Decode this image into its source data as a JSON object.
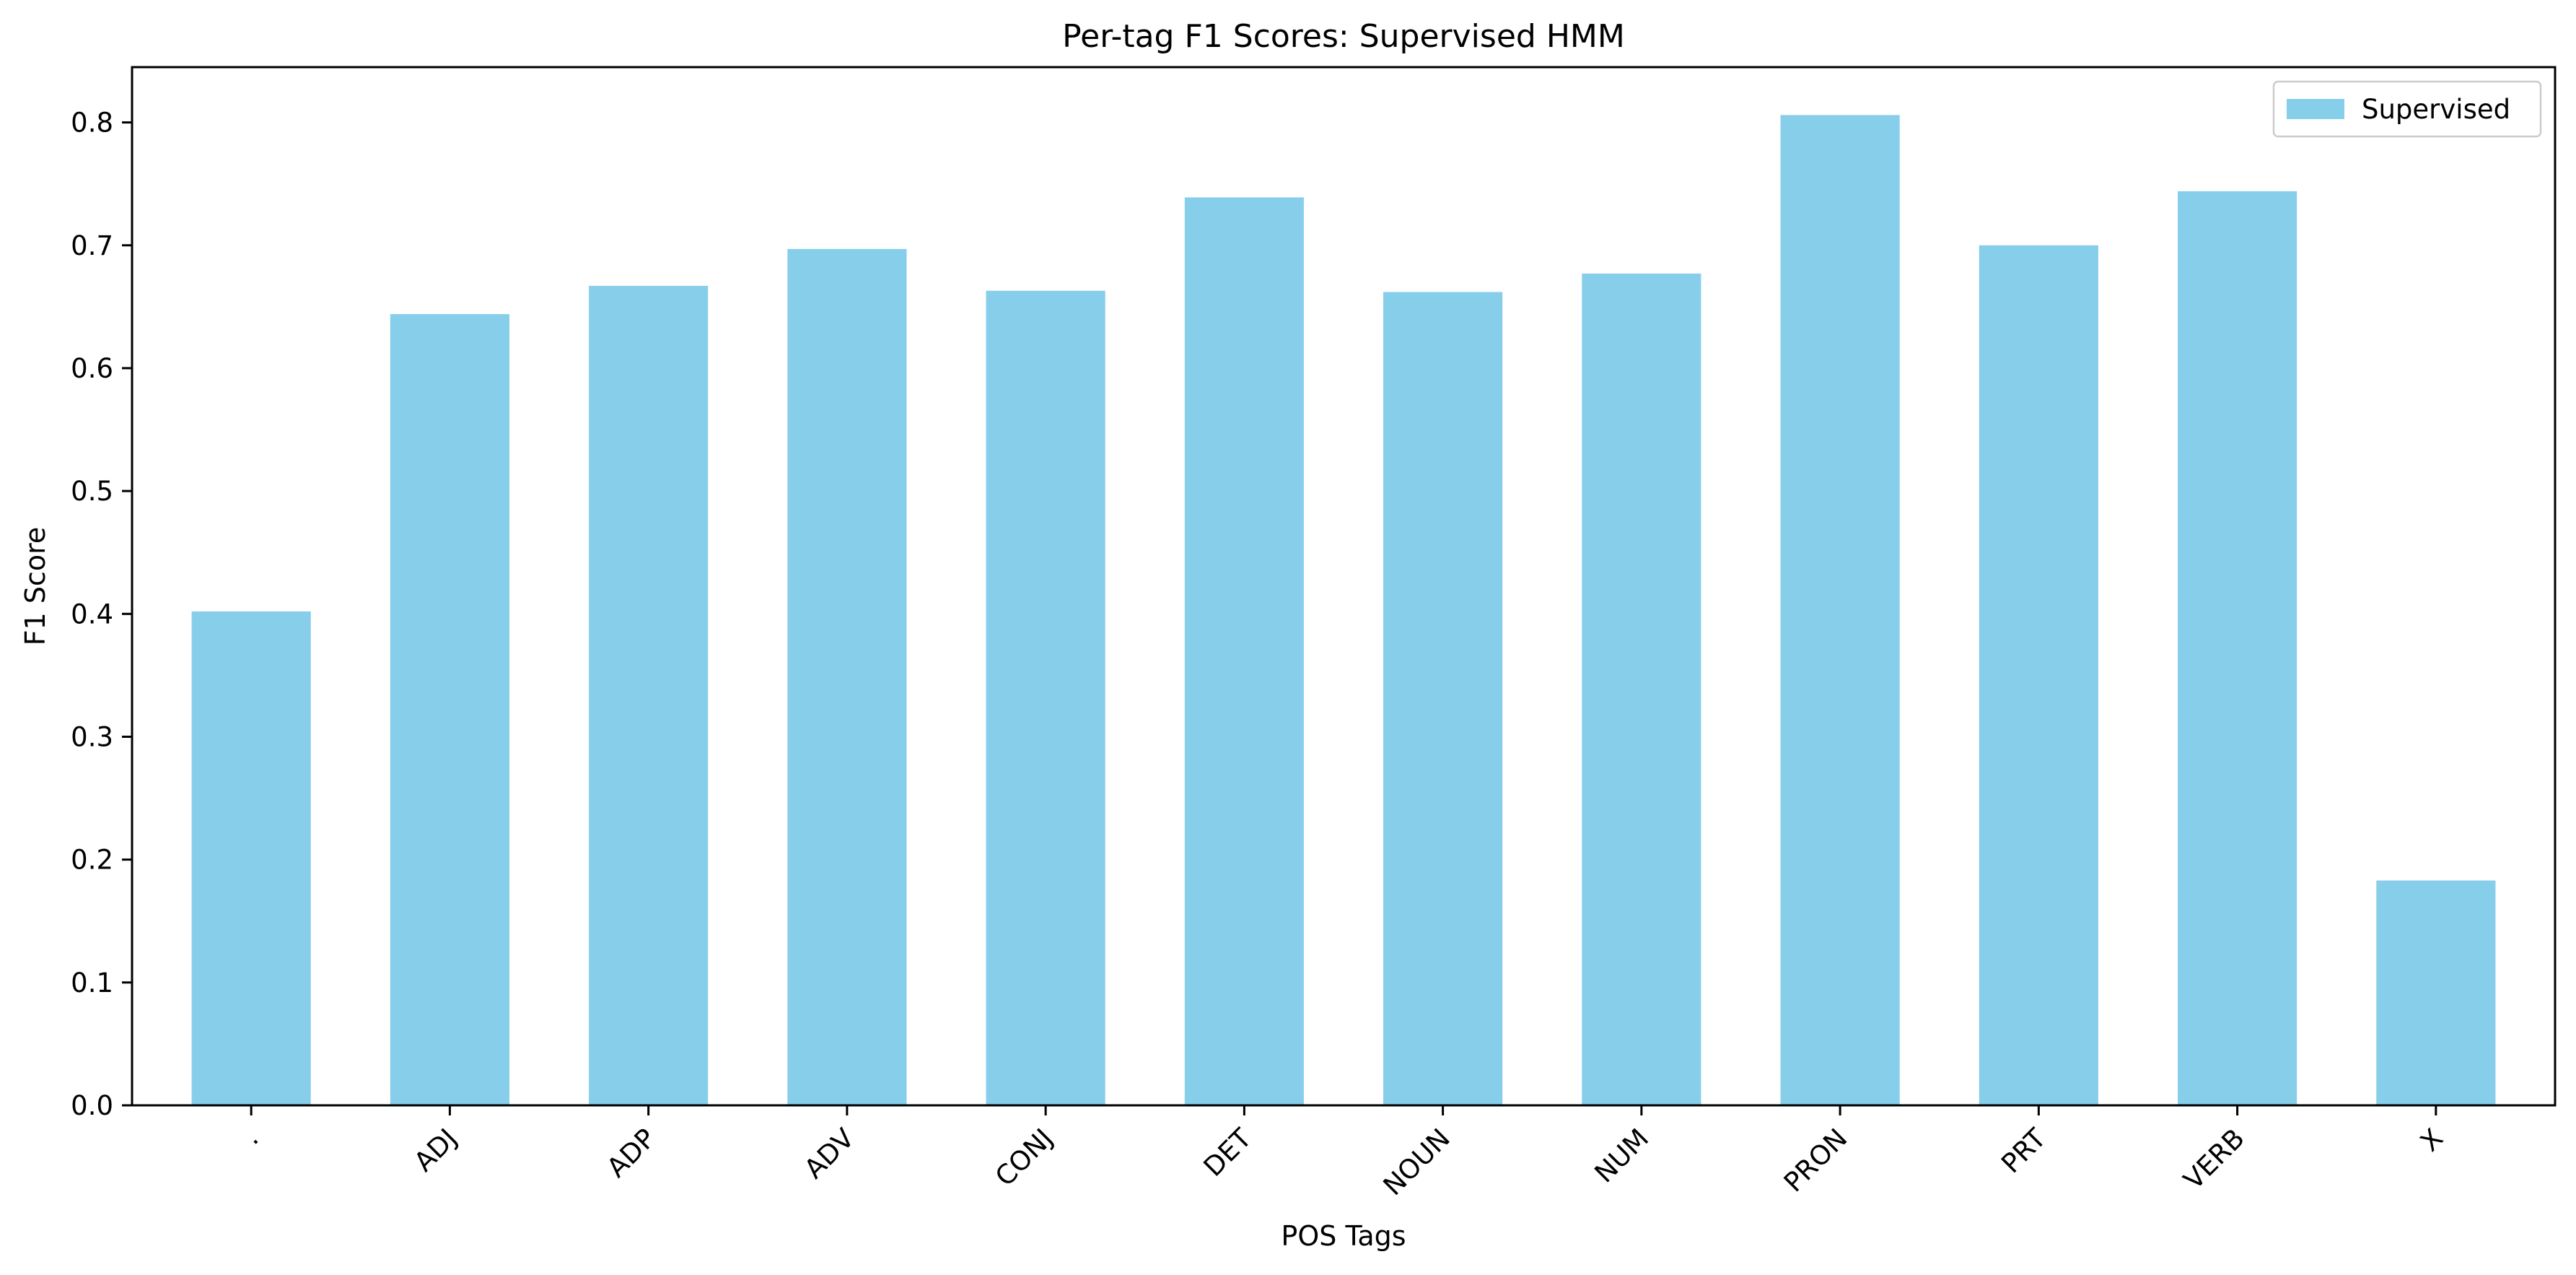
{
  "chart_data": {
    "type": "bar",
    "title": "Per-tag F1 Scores: Supervised HMM",
    "xlabel": "POS Tags",
    "ylabel": "F1 Score",
    "categories": [
      ".",
      "ADJ",
      "ADP",
      "ADV",
      "CONJ",
      "DET",
      "NOUN",
      "NUM",
      "PRON",
      "PRT",
      "VERB",
      "X"
    ],
    "series": [
      {
        "name": "Supervised",
        "color": "#87ceeb",
        "values": [
          0.402,
          0.644,
          0.667,
          0.697,
          0.663,
          0.739,
          0.662,
          0.677,
          0.806,
          0.7,
          0.744,
          0.183
        ]
      }
    ],
    "ylim": [
      0,
      0.845
    ],
    "yticks": [
      0.0,
      0.1,
      0.2,
      0.3,
      0.4,
      0.5,
      0.6,
      0.7,
      0.8
    ],
    "ytick_labels": [
      "0.0",
      "0.1",
      "0.2",
      "0.3",
      "0.4",
      "0.5",
      "0.6",
      "0.7",
      "0.8"
    ],
    "grid": false,
    "legend_position": "top-right",
    "x_tick_rotation": -45
  }
}
